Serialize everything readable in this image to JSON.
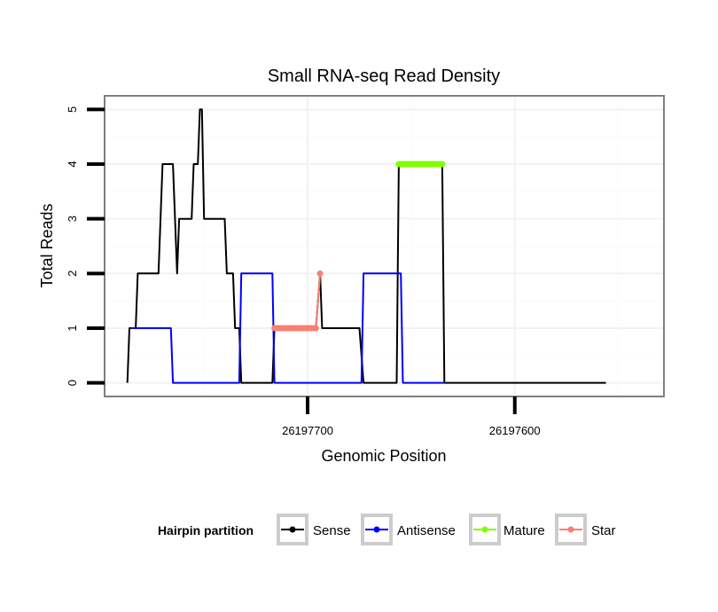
{
  "chart_data": {
    "type": "line",
    "title": "Small RNA-seq Read Density",
    "xlabel": "Genomic Position",
    "ylabel": "Total Reads",
    "xlim": [
      26197798,
      26197528
    ],
    "ylim": [
      -0.25,
      5.25
    ],
    "x_reversed": true,
    "grid": true,
    "x_ticks": [
      26197700,
      26197600
    ],
    "x_tick_labels": [
      "26197700",
      "26197600"
    ],
    "y_ticks": [
      0,
      1,
      2,
      3,
      4,
      5
    ],
    "y_tick_labels": [
      "0",
      "1",
      "2",
      "3",
      "4",
      "5"
    ],
    "legend": {
      "title": "Hairpin partition",
      "position": "bottom",
      "entries": [
        {
          "label": "Sense",
          "color": "#000000"
        },
        {
          "label": "Antisense",
          "color": "#0000ff"
        },
        {
          "label": "Mature",
          "color": "#7fff00"
        },
        {
          "label": "Star",
          "color": "#fa8072"
        }
      ]
    },
    "series": [
      {
        "name": "Sense",
        "color": "#000000",
        "points": [
          [
            26197787,
            0
          ],
          [
            26197786,
            1
          ],
          [
            26197783,
            1
          ],
          [
            26197782,
            2
          ],
          [
            26197772,
            2
          ],
          [
            26197770,
            4
          ],
          [
            26197765,
            4
          ],
          [
            26197763,
            2
          ],
          [
            26197762,
            3
          ],
          [
            26197756,
            3
          ],
          [
            26197755,
            4
          ],
          [
            26197753,
            4
          ],
          [
            26197752,
            5
          ],
          [
            26197751,
            5
          ],
          [
            26197750,
            3
          ],
          [
            26197740,
            3
          ],
          [
            26197739,
            2
          ],
          [
            26197736,
            2
          ],
          [
            26197735,
            1
          ],
          [
            26197733,
            1
          ],
          [
            26197732,
            0
          ],
          [
            26197717,
            0
          ],
          [
            26197716,
            1
          ],
          [
            26197696,
            1
          ],
          [
            26197694,
            2
          ],
          [
            26197693,
            1
          ],
          [
            26197675,
            1
          ],
          [
            26197673,
            0
          ],
          [
            26197657,
            0
          ],
          [
            26197656,
            4
          ],
          [
            26197635,
            4
          ],
          [
            26197634,
            0
          ],
          [
            26197556,
            0
          ]
        ]
      },
      {
        "name": "Antisense",
        "color": "#0000ff",
        "points": [
          [
            26197785,
            1
          ],
          [
            26197766,
            1
          ],
          [
            26197765,
            0
          ],
          [
            26197733,
            0
          ],
          [
            26197732,
            2
          ],
          [
            26197717,
            2
          ],
          [
            26197716,
            0
          ],
          [
            26197674,
            0
          ],
          [
            26197673,
            2
          ],
          [
            26197655,
            2
          ],
          [
            26197654,
            0
          ],
          [
            26197634,
            0
          ]
        ]
      },
      {
        "name": "Mature",
        "color": "#7fff00",
        "marker_start": 26197656,
        "marker_end": 26197635,
        "value": 4
      },
      {
        "name": "Star",
        "color": "#fa8072",
        "points": [
          [
            26197716,
            1
          ],
          [
            26197696,
            1
          ],
          [
            26197694,
            2
          ]
        ],
        "marker_start": 26197716,
        "marker_end": 26197696,
        "value": 1,
        "extra_markers": [
          [
            26197694,
            2
          ]
        ]
      }
    ]
  }
}
